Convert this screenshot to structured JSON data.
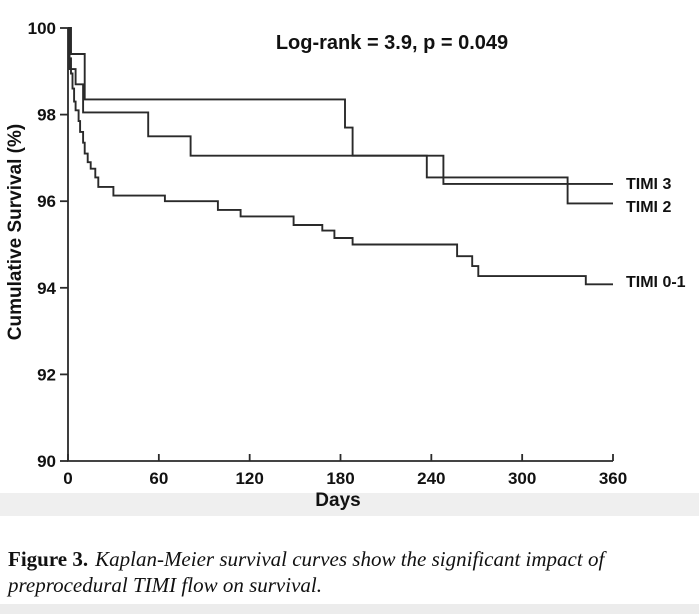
{
  "chart_data": {
    "type": "line",
    "subtype": "kaplan-meier-step",
    "annotation": "Log-rank = 3.9, p = 0.049",
    "xlabel": "Days",
    "ylabel": "Cumulative Survival (%)",
    "xlim": [
      0,
      360
    ],
    "ylim": [
      90,
      100
    ],
    "x_ticks": [
      0,
      60,
      120,
      180,
      240,
      300,
      360
    ],
    "y_ticks": [
      100,
      98,
      96,
      94,
      92,
      90
    ],
    "grid": false,
    "legend_position": "right-of-curve-ends",
    "line_color": "#2a2a2a",
    "series": [
      {
        "name": "TIMI 3",
        "label_y": 96.42,
        "steps": [
          [
            0,
            100
          ],
          [
            2,
            99.4
          ],
          [
            11,
            98.35
          ],
          [
            183,
            97.7
          ],
          [
            188,
            97.05
          ],
          [
            248,
            96.4
          ],
          [
            360,
            96.4
          ]
        ]
      },
      {
        "name": "TIMI 2",
        "label_y": 95.89,
        "steps": [
          [
            0,
            100
          ],
          [
            1,
            99.05
          ],
          [
            5,
            98.7
          ],
          [
            10,
            98.05
          ],
          [
            53,
            97.5
          ],
          [
            81,
            97.05
          ],
          [
            237,
            96.55
          ],
          [
            330,
            95.95
          ],
          [
            360,
            95.95
          ]
        ]
      },
      {
        "name": "TIMI 0-1",
        "label_y": 94.16,
        "steps": [
          [
            0,
            100
          ],
          [
            1,
            99.3
          ],
          [
            2,
            98.95
          ],
          [
            3,
            98.6
          ],
          [
            4,
            98.3
          ],
          [
            5,
            98.1
          ],
          [
            7,
            97.85
          ],
          [
            8,
            97.6
          ],
          [
            10,
            97.35
          ],
          [
            11,
            97.1
          ],
          [
            13,
            96.9
          ],
          [
            15,
            96.75
          ],
          [
            18,
            96.55
          ],
          [
            20,
            96.33
          ],
          [
            30,
            96.13
          ],
          [
            64,
            96.0
          ],
          [
            99,
            95.8
          ],
          [
            114,
            95.65
          ],
          [
            149,
            95.45
          ],
          [
            168,
            95.32
          ],
          [
            176,
            95.15
          ],
          [
            188,
            95.0
          ],
          [
            257,
            94.73
          ],
          [
            267,
            94.5
          ],
          [
            271,
            94.27
          ],
          [
            342,
            94.08
          ],
          [
            360,
            94.08
          ]
        ]
      }
    ]
  },
  "caption": {
    "prefix": "Figure 3.",
    "line1": "Kaplan-Meier survival curves show the significant impact of",
    "line2": "preprocedural TIMI flow on survival."
  }
}
